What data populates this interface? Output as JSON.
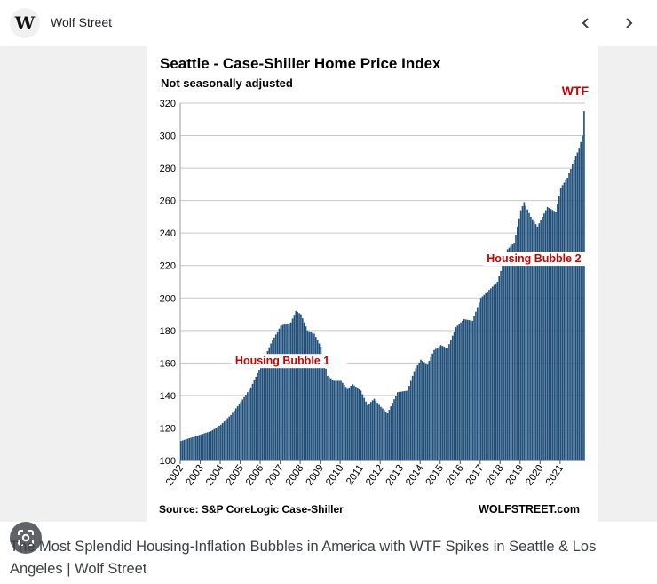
{
  "site": {
    "logo_letter": "W",
    "name": "Wolf Street"
  },
  "nav": {
    "prev_icon": "chevron-left-icon",
    "next_icon": "chevron-right-icon"
  },
  "lens": {
    "icon": "google-lens-icon"
  },
  "caption": "The Most Splendid Housing-Inflation Bubbles in America with WTF Spikes in Seattle & Los Angeles | Wolf Street",
  "chart_data": {
    "type": "bar",
    "title": "Seattle - Case-Shiller Home Price Index",
    "subtitle": "Not seasonally adjusted",
    "source": "Source: S&P CoreLogic Case-Shiller",
    "brand": "WOLFSTREET.com",
    "bar_color": "#1f4e79",
    "ylim": [
      100,
      320
    ],
    "yticks": [
      100,
      120,
      140,
      160,
      180,
      200,
      220,
      240,
      260,
      280,
      300,
      320
    ],
    "xticks": [
      "2002",
      "2003",
      "2004",
      "2005",
      "2006",
      "2007",
      "2008",
      "2009",
      "2010",
      "2011",
      "2012",
      "2013",
      "2014",
      "2015",
      "2016",
      "2017",
      "2018",
      "2019",
      "2020",
      "2021"
    ],
    "start": "2002-01",
    "monthly_anchors": [
      [
        0,
        112
      ],
      [
        12,
        116
      ],
      [
        18,
        118
      ],
      [
        24,
        122
      ],
      [
        30,
        128
      ],
      [
        36,
        136
      ],
      [
        42,
        145
      ],
      [
        48,
        158
      ],
      [
        54,
        172
      ],
      [
        60,
        183
      ],
      [
        66,
        185
      ],
      [
        69,
        192
      ],
      [
        72,
        190
      ],
      [
        76,
        180
      ],
      [
        80,
        178
      ],
      [
        84,
        170
      ],
      [
        88,
        152
      ],
      [
        92,
        149
      ],
      [
        96,
        149
      ],
      [
        100,
        144
      ],
      [
        103,
        147
      ],
      [
        108,
        143
      ],
      [
        112,
        134
      ],
      [
        116,
        138
      ],
      [
        120,
        133
      ],
      [
        124,
        129
      ],
      [
        130,
        142
      ],
      [
        136,
        143
      ],
      [
        140,
        155
      ],
      [
        144,
        162
      ],
      [
        148,
        159
      ],
      [
        152,
        168
      ],
      [
        156,
        171
      ],
      [
        160,
        169
      ],
      [
        165,
        182
      ],
      [
        170,
        187
      ],
      [
        175,
        186
      ],
      [
        180,
        200
      ],
      [
        185,
        205
      ],
      [
        190,
        210
      ],
      [
        196,
        230
      ],
      [
        200,
        234
      ],
      [
        204,
        254
      ],
      [
        206,
        259
      ],
      [
        210,
        250
      ],
      [
        214,
        244
      ],
      [
        217,
        250
      ],
      [
        220,
        256
      ],
      [
        225,
        253
      ],
      [
        228,
        268
      ],
      [
        232,
        274
      ],
      [
        236,
        285
      ],
      [
        239,
        292
      ],
      [
        241,
        300
      ],
      [
        242,
        315
      ]
    ],
    "annotations": [
      {
        "label": "Housing Bubble 1",
        "x": "2004-10",
        "y": 159,
        "color": "#cc0000"
      },
      {
        "label": "Housing Bubble 2",
        "x": "2017-05",
        "y": 222,
        "color": "#cc0000"
      },
      {
        "label": "WTF",
        "x": "2021-02",
        "y": 325,
        "color": "#cc0000"
      }
    ]
  }
}
